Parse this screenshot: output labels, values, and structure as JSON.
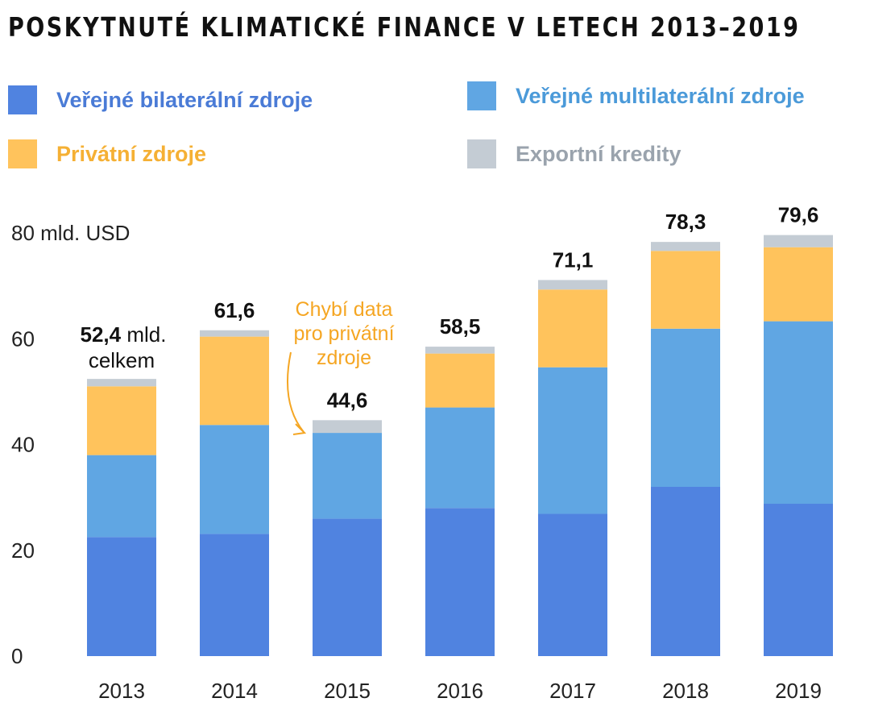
{
  "title": "POSKYTNUTÉ KLIMATICKÉ FINANCE V LETECH 2013–2019",
  "colors": {
    "bilateral": "#5083e0",
    "multilateral": "#60a6e3",
    "private": "#ffc35c",
    "export": "#c4ccd4",
    "bilateral_text": "#4a7bd6",
    "multilateral_text": "#4b9ad9",
    "private_text": "#f5b034",
    "export_text": "#9aa3ad",
    "annotation": "#f5a623"
  },
  "chart_data": {
    "type": "bar",
    "stacked": true,
    "title": "POSKYTNUTÉ KLIMATICKÉ FINANCE V LETECH 2013–2019",
    "ylabel": "mld. USD",
    "ylim": [
      0,
      80
    ],
    "yticks": [
      "0",
      "20",
      "40",
      "60",
      "80 mld. USD"
    ],
    "legend_position": "top",
    "categories": [
      "2013",
      "2014",
      "2015",
      "2016",
      "2017",
      "2018",
      "2019"
    ],
    "series": [
      {
        "name": "Veřejné bilaterální zdroje",
        "key": "bilateral",
        "values": [
          22.5,
          23.1,
          26.0,
          28.0,
          26.9,
          32.0,
          28.8
        ]
      },
      {
        "name": "Veřejné multilaterální zdroje",
        "key": "multilateral",
        "values": [
          15.5,
          20.6,
          16.2,
          19.0,
          27.7,
          29.9,
          34.5
        ]
      },
      {
        "name": "Privátní zdroje",
        "key": "private",
        "values": [
          13.0,
          16.7,
          0,
          10.2,
          14.7,
          14.7,
          14.0
        ]
      },
      {
        "name": "Exportní kredity",
        "key": "export",
        "values": [
          1.4,
          1.2,
          2.4,
          1.3,
          1.8,
          1.7,
          2.3
        ]
      }
    ],
    "totals": [
      52.4,
      61.6,
      44.6,
      58.5,
      71.1,
      78.3,
      79.6
    ],
    "total_labels": [
      "52,4",
      "61,6",
      "44,6",
      "58,5",
      "71,1",
      "78,3",
      "79,6"
    ],
    "first_label_suffix": " mld.",
    "first_label_line2": "celkem",
    "annotation": {
      "lines": [
        "Chybí data",
        "pro privátní",
        "zdroje"
      ],
      "target_category": "2015"
    }
  }
}
